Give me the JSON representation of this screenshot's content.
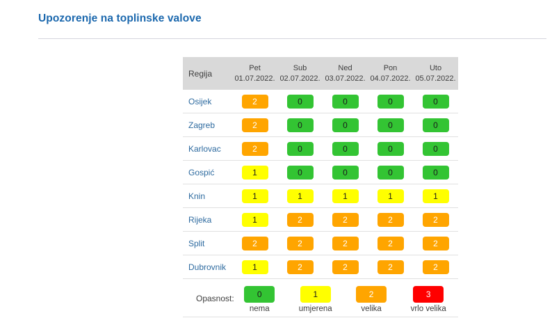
{
  "page": {
    "title": "Upozorenje na toplinske valove"
  },
  "table": {
    "region_header": "Regija",
    "columns": [
      {
        "day": "Pet",
        "date": "01.07.2022."
      },
      {
        "day": "Sub",
        "date": "02.07.2022."
      },
      {
        "day": "Ned",
        "date": "03.07.2022."
      },
      {
        "day": "Pon",
        "date": "04.07.2022."
      },
      {
        "day": "Uto",
        "date": "05.07.2022."
      }
    ],
    "rows": [
      {
        "region": "Osijek",
        "values": [
          2,
          0,
          0,
          0,
          0
        ]
      },
      {
        "region": "Zagreb",
        "values": [
          2,
          0,
          0,
          0,
          0
        ]
      },
      {
        "region": "Karlovac",
        "values": [
          2,
          0,
          0,
          0,
          0
        ]
      },
      {
        "region": "Gospić",
        "values": [
          1,
          0,
          0,
          0,
          0
        ]
      },
      {
        "region": "Knin",
        "values": [
          1,
          1,
          1,
          1,
          1
        ]
      },
      {
        "region": "Rijeka",
        "values": [
          1,
          2,
          2,
          2,
          2
        ]
      },
      {
        "region": "Split",
        "values": [
          2,
          2,
          2,
          2,
          2
        ]
      },
      {
        "region": "Dubrovnik",
        "values": [
          1,
          2,
          2,
          2,
          2
        ]
      }
    ]
  },
  "legend": {
    "label": "Opasnost:",
    "items": [
      {
        "value": 0,
        "label": "nema",
        "color": "#33c433",
        "text_color": "#1a1a1a"
      },
      {
        "value": 1,
        "label": "umjerena",
        "color": "#ffff00",
        "text_color": "#1a1a1a"
      },
      {
        "value": 2,
        "label": "velika",
        "color": "#ffa500",
        "text_color": "#ffffff"
      },
      {
        "value": 3,
        "label": "vrlo velika",
        "color": "#ff0000",
        "text_color": "#ffffff"
      }
    ]
  },
  "colors": {
    "title": "#1a67ad",
    "region_link": "#2d6a9f",
    "header_bg": "#d9d9d9",
    "header_text": "#3d3d3d",
    "row_border": "#e0e0e0",
    "divider": "#d5d5de"
  }
}
